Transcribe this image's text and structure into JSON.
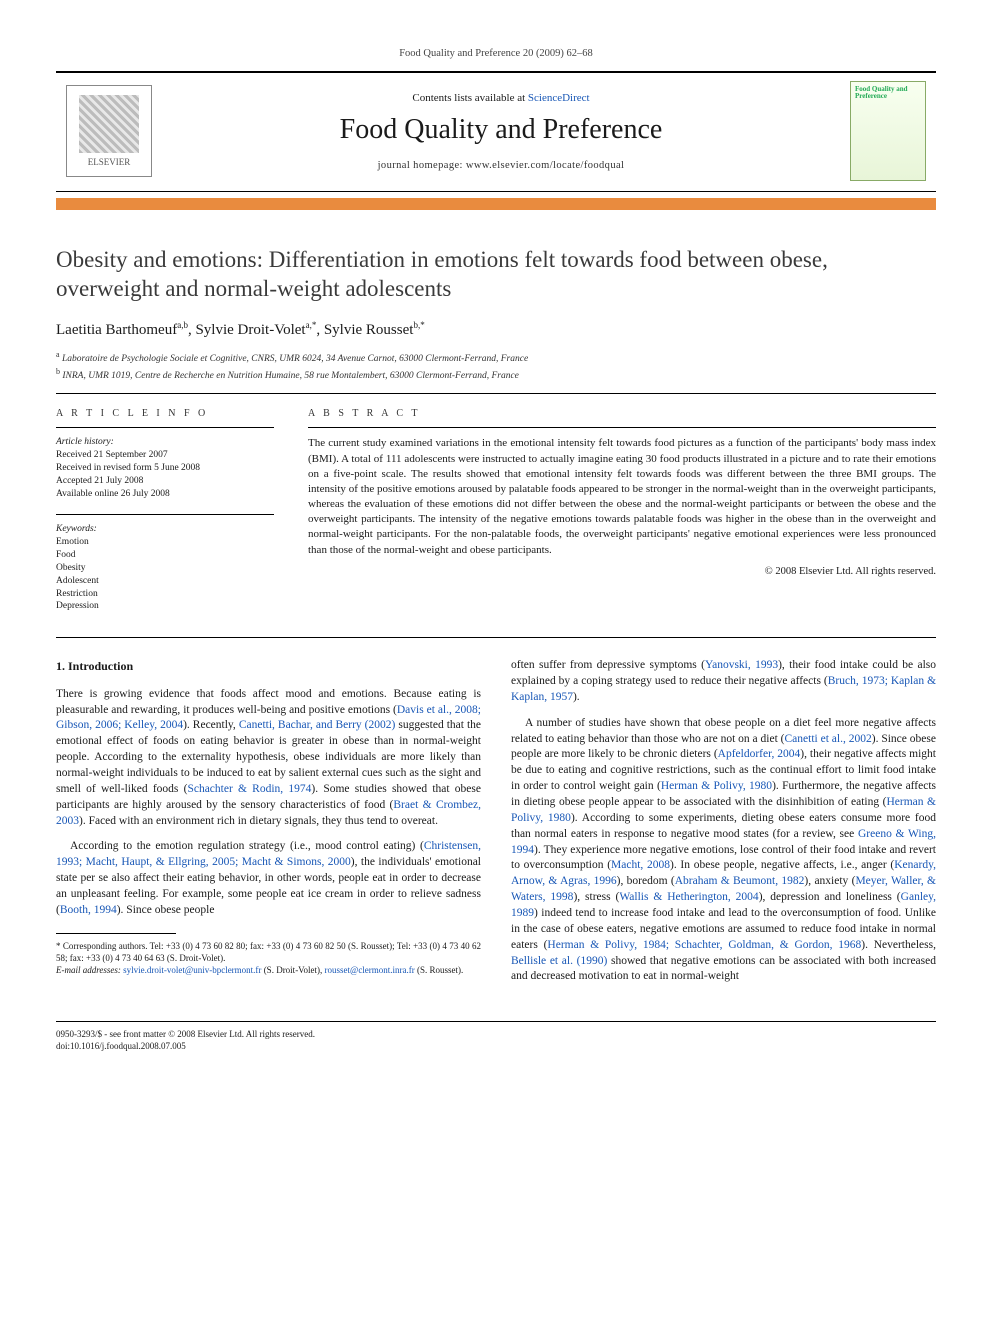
{
  "running_head": "Food Quality and Preference 20 (2009) 62–68",
  "masthead": {
    "publisher": "ELSEVIER",
    "contents_prefix": "Contents lists available at ",
    "contents_link": "ScienceDirect",
    "journal": "Food Quality and Preference",
    "homepage_label": "journal homepage: ",
    "homepage_url": "www.elsevier.com/locate/foodqual",
    "cover_title": "Food Quality and Preference"
  },
  "colors": {
    "accent_bar": "#e98b3e",
    "link": "#1857b6"
  },
  "title": "Obesity and emotions: Differentiation in emotions felt towards food between obese, overweight and normal-weight adolescents",
  "authors_html": "Laetitia Barthomeuf<sup>a,b</sup>, Sylvie Droit-Volet<sup>a,*</sup>, Sylvie Rousset<sup>b,*</sup>",
  "affiliations": [
    {
      "sup": "a",
      "text": "Laboratoire de Psychologie Sociale et Cognitive, CNRS, UMR 6024, 34 Avenue Carnot, 63000 Clermont-Ferrand, France"
    },
    {
      "sup": "b",
      "text": "INRA, UMR 1019, Centre de Recherche en Nutrition Humaine, 58 rue Montalembert, 63000 Clermont-Ferrand, France"
    }
  ],
  "article_info": {
    "heading": "A R T I C L E   I N F O",
    "history_label": "Article history:",
    "history": [
      "Received 21 September 2007",
      "Received in revised form 5 June 2008",
      "Accepted 21 July 2008",
      "Available online 26 July 2008"
    ],
    "keywords_label": "Keywords:",
    "keywords": [
      "Emotion",
      "Food",
      "Obesity",
      "Adolescent",
      "Restriction",
      "Depression"
    ]
  },
  "abstract": {
    "heading": "A B S T R A C T",
    "text": "The current study examined variations in the emotional intensity felt towards food pictures as a function of the participants' body mass index (BMI). A total of 111 adolescents were instructed to actually imagine eating 30 food products illustrated in a picture and to rate their emotions on a five-point scale. The results showed that emotional intensity felt towards foods was different between the three BMI groups. The intensity of the positive emotions aroused by palatable foods appeared to be stronger in the normal-weight than in the overweight participants, whereas the evaluation of these emotions did not differ between the obese and the normal-weight participants or between the obese and the overweight participants. The intensity of the negative emotions towards palatable foods was higher in the obese than in the overweight and normal-weight participants. For the non-palatable foods, the overweight participants' negative emotional experiences were less pronounced than those of the normal-weight and obese participants.",
    "copyright": "© 2008 Elsevier Ltd. All rights reserved."
  },
  "section1": {
    "heading": "1. Introduction",
    "p1": "There is growing evidence that foods affect mood and emotions. Because eating is pleasurable and rewarding, it produces well-being and positive emotions (",
    "p1_refs1": "Davis et al., 2008; Gibson, 2006; Kelley, 2004",
    "p1_mid": "). Recently, ",
    "p1_refs2": "Canetti, Bachar, and Berry (2002)",
    "p1_b": " suggested that the emotional effect of foods on eating behavior is greater in obese than in normal-weight people. According to the externality hypothesis, obese individuals are more likely than normal-weight individuals to be induced to eat by salient external cues such as the sight and smell of well-liked foods (",
    "p1_refs3": "Schachter & Rodin, 1974",
    "p1_c": "). Some studies showed that obese participants are highly aroused by the sensory characteristics of food (",
    "p1_refs4": "Braet & Crombez, 2003",
    "p1_d": "). Faced with an environment rich in dietary signals, they thus tend to overeat.",
    "p2a": "According to the emotion regulation strategy (i.e., mood control eating) (",
    "p2_refs1": "Christensen, 1993; Macht, Haupt, & Ellgring, 2005; Macht & Simons, 2000",
    "p2b": "), the individuals' emotional state per se also affect their eating behavior, in other words, people eat in order to decrease an unpleasant feeling. For example, some people eat ice cream in order to relieve sadness (",
    "p2_refs2": "Booth, 1994",
    "p2c": "). Since obese people",
    "p2_col2a": "often suffer from depressive symptoms (",
    "p2_col2_ref1": "Yanovski, 1993",
    "p2_col2b": "), their food intake could be also explained by a coping strategy used to reduce their negative affects (",
    "p2_col2_ref2": "Bruch, 1973; Kaplan & Kaplan, 1957",
    "p2_col2c": ").",
    "p3a": "A number of studies have shown that obese people on a diet feel more negative affects related to eating behavior than those who are not on a diet (",
    "p3_ref1": "Canetti et al., 2002",
    "p3b": "). Since obese people are more likely to be chronic dieters (",
    "p3_ref2": "Apfeldorfer, 2004",
    "p3c": "), their negative affects might be due to eating and cognitive restrictions, such as the continual effort to limit food intake in order to control weight gain (",
    "p3_ref3": "Herman & Polivy, 1980",
    "p3d": "). Furthermore, the negative affects in dieting obese people appear to be associated with the disinhibition of eating (",
    "p3_ref4": "Herman & Polivy, 1980",
    "p3e": "). According to some experiments, dieting obese eaters consume more food than normal eaters in response to negative mood states (for a review, see ",
    "p3_ref5": "Greeno & Wing, 1994",
    "p3f": "). They experience more negative emotions, lose control of their food intake and revert to overconsumption (",
    "p3_ref6": "Macht, 2008",
    "p3g": "). In obese people, negative affects, i.e., anger (",
    "p3_ref7": "Kenardy, Arnow, & Agras, 1996",
    "p3h": "), boredom (",
    "p3_ref8": "Abraham & Beumont, 1982",
    "p3i": "), anxiety (",
    "p3_ref9": "Meyer, Waller, & Waters, 1998",
    "p3j": "), stress (",
    "p3_ref10": "Wallis & Hetherington, 2004",
    "p3k": "), depression and loneliness (",
    "p3_ref11": "Ganley, 1989",
    "p3l": ") indeed tend to increase food intake and lead to the overconsumption of food. Unlike in the case of obese eaters, negative emotions are assumed to reduce food intake in normal eaters (",
    "p3_ref12": "Herman & Polivy, 1984; Schachter, Goldman, & Gordon, 1968",
    "p3m": "). Nevertheless, ",
    "p3_ref13": "Bellisle et al. (1990)",
    "p3n": " showed that negative emotions can be associated with both increased and decreased motivation to eat in normal-weight"
  },
  "footnotes": {
    "corr": "* Corresponding authors. Tel: +33 (0) 4 73 60 82 80; fax: +33 (0) 4 73 60 82 50 (S. Rousset); Tel: +33 (0) 4 73 40 62 58; fax: +33 (0) 4 73 40 64 63 (S. Droit-Volet).",
    "emails_label": "E-mail addresses: ",
    "email1": "sylvie.droit-volet@univ-bpclermont.fr",
    "email1_who": " (S. Droit-Volet), ",
    "email2": "rousset@clermont.inra.fr",
    "email2_who": " (S. Rousset)."
  },
  "doi": {
    "line1": "0950-3293/$ - see front matter © 2008 Elsevier Ltd. All rights reserved.",
    "line2": "doi:10.1016/j.foodqual.2008.07.005"
  }
}
